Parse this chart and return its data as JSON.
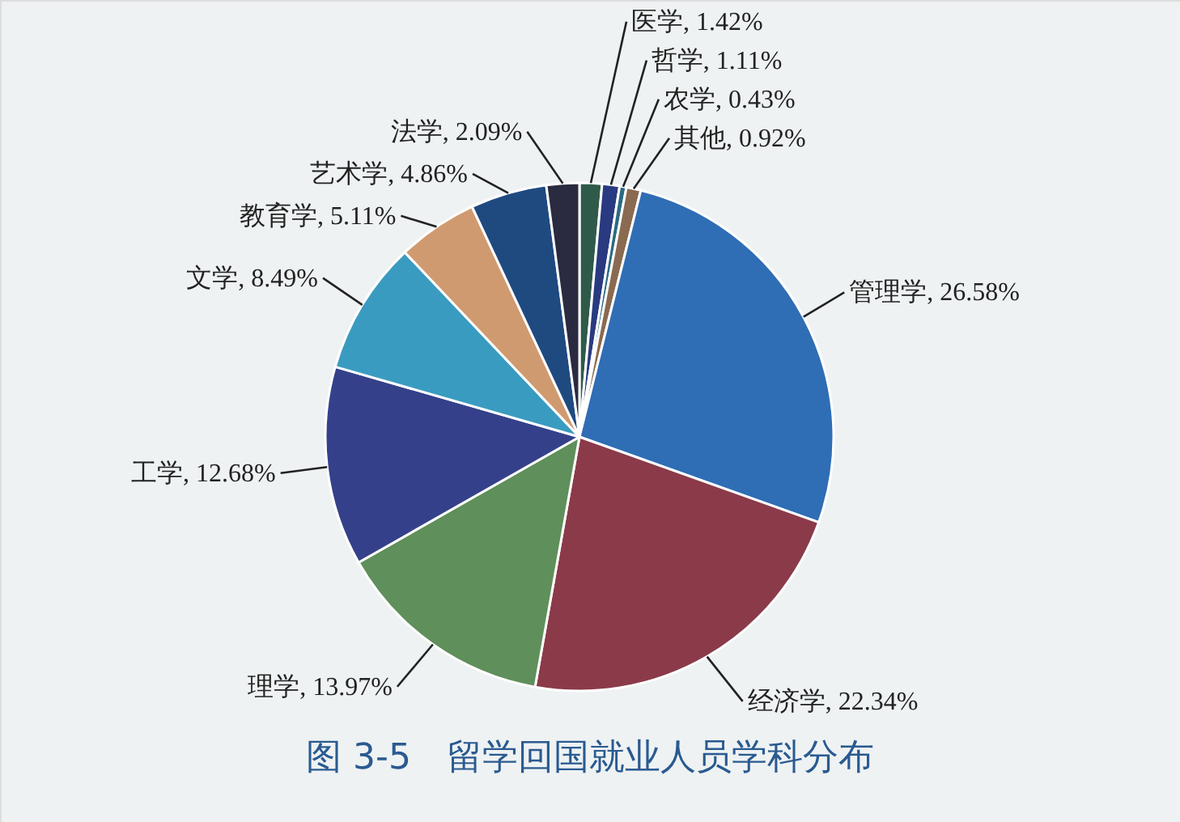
{
  "chart_data": {
    "type": "pie",
    "title": "图 3-5　留学回国就业人员学科分布",
    "categories": [
      "医学",
      "哲学",
      "农学",
      "其他",
      "管理学",
      "经济学",
      "理学",
      "工学",
      "文学",
      "教育学",
      "艺术学",
      "法学"
    ],
    "values": [
      1.42,
      1.11,
      0.43,
      0.92,
      26.58,
      22.34,
      13.97,
      12.68,
      8.49,
      5.11,
      4.86,
      2.09
    ],
    "value_labels": [
      "1.42%",
      "1.11%",
      "0.43%",
      "0.92%",
      "26.58%",
      "22.34%",
      "13.97%",
      "12.68%",
      "8.49%",
      "5.11%",
      "4.86%",
      "2.09%"
    ],
    "colors": [
      "#2f5a4a",
      "#2a3a80",
      "#2a6a80",
      "#8a6a50",
      "#2f6db5",
      "#8b3a4a",
      "#5f8f5a",
      "#34418a",
      "#3a9bc0",
      "#d09a70",
      "#1f4a80",
      "#2a2a40"
    ]
  }
}
